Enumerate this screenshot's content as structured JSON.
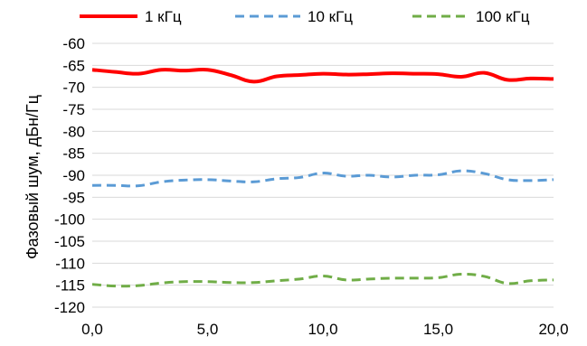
{
  "chart_data": {
    "type": "line",
    "ylabel": "Фазовый шум, дБн/Гц",
    "xlabel": "",
    "xlim": [
      0,
      20
    ],
    "ylim": [
      -120,
      -60
    ],
    "x_ticks": [
      0,
      5,
      10,
      15,
      20
    ],
    "x_tick_labels": [
      "0,0",
      "5,0",
      "10,0",
      "15,0",
      "20,0"
    ],
    "y_ticks": [
      -60,
      -65,
      -70,
      -75,
      -80,
      -85,
      -90,
      -95,
      -100,
      -105,
      -110,
      -115,
      -120
    ],
    "y_tick_labels": [
      "-60",
      "-65",
      "-70",
      "-75",
      "-80",
      "-85",
      "-90",
      "-95",
      "-100",
      "-105",
      "-110",
      "-115",
      "-120"
    ],
    "grid": "horizontal",
    "legend_position": "top",
    "series": [
      {
        "name": "1 кГц",
        "color": "#ff0000",
        "dash": "solid",
        "x": [
          0,
          1,
          2,
          3,
          4,
          5,
          6,
          7,
          8,
          9,
          10,
          11,
          12,
          13,
          14,
          15,
          16,
          17,
          18,
          19,
          20
        ],
        "y": [
          -66.0,
          -66.5,
          -66.9,
          -66.0,
          -66.2,
          -66.0,
          -67.2,
          -68.7,
          -67.5,
          -67.2,
          -66.9,
          -67.1,
          -67.0,
          -66.8,
          -66.9,
          -67.0,
          -67.6,
          -66.7,
          -68.3,
          -68.0,
          -68.1
        ]
      },
      {
        "name": "10 кГц",
        "color": "#5b9bd5",
        "dash": "dashed",
        "x": [
          0,
          1,
          2,
          3,
          4,
          5,
          6,
          7,
          8,
          9,
          10,
          11,
          12,
          13,
          14,
          15,
          16,
          17,
          18,
          19,
          20
        ],
        "y": [
          -92.3,
          -92.3,
          -92.4,
          -91.5,
          -91.1,
          -91.0,
          -91.3,
          -91.5,
          -90.8,
          -90.5,
          -89.5,
          -90.2,
          -90.0,
          -90.4,
          -90.0,
          -89.9,
          -89.0,
          -89.6,
          -91.0,
          -91.2,
          -91.0
        ]
      },
      {
        "name": "100 кГц",
        "color": "#70ad47",
        "dash": "dashed",
        "x": [
          0,
          1,
          2,
          3,
          4,
          5,
          6,
          7,
          8,
          9,
          10,
          11,
          12,
          13,
          14,
          15,
          16,
          17,
          18,
          19,
          20
        ],
        "y": [
          -114.8,
          -115.2,
          -115.1,
          -114.5,
          -114.2,
          -114.2,
          -114.4,
          -114.4,
          -114.0,
          -113.6,
          -112.9,
          -113.8,
          -113.6,
          -113.4,
          -113.4,
          -113.3,
          -112.5,
          -113.0,
          -114.6,
          -114.0,
          -113.8
        ]
      }
    ]
  }
}
